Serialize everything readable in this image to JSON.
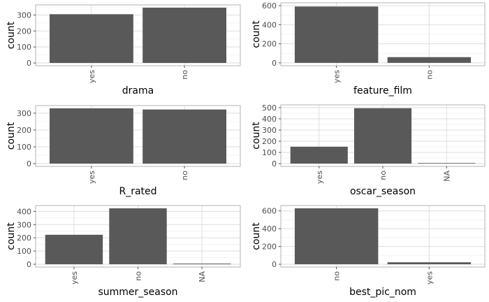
{
  "style": {
    "bar_color": "#595959",
    "panel_border": "#b3b3b3",
    "grid_major": "#dedede",
    "grid_minor": "#efefef",
    "tick_color": "#4d4d4d",
    "background": "#ffffff"
  },
  "chart_data": [
    {
      "type": "bar",
      "xlabel": "drama",
      "ylabel": "count",
      "categories": [
        "yes",
        "no"
      ],
      "values": [
        305,
        346
      ],
      "ylim": [
        0,
        346
      ],
      "yticks": [
        0,
        100,
        200,
        300
      ],
      "grid": true
    },
    {
      "type": "bar",
      "xlabel": "feature_film",
      "ylabel": "count",
      "categories": [
        "yes",
        "no"
      ],
      "values": [
        591,
        60
      ],
      "ylim": [
        0,
        600
      ],
      "yticks": [
        0,
        200,
        400,
        600
      ],
      "grid": true
    },
    {
      "type": "bar",
      "xlabel": "R_rated",
      "ylabel": "count",
      "categories": [
        "yes",
        "no"
      ],
      "values": [
        329,
        322
      ],
      "ylim": [
        0,
        329
      ],
      "yticks": [
        0,
        100,
        200,
        300
      ],
      "grid": true
    },
    {
      "type": "bar",
      "xlabel": "oscar_season",
      "ylabel": "count",
      "categories": [
        "yes",
        "no",
        "NA"
      ],
      "values": [
        151,
        495,
        5
      ],
      "ylim": [
        0,
        500
      ],
      "yticks": [
        0,
        100,
        200,
        300,
        400,
        500
      ],
      "grid": true
    },
    {
      "type": "bar",
      "xlabel": "summer_season",
      "ylabel": "count",
      "categories": [
        "yes",
        "no",
        "NA"
      ],
      "values": [
        223,
        423,
        5
      ],
      "ylim": [
        0,
        423
      ],
      "yticks": [
        0,
        100,
        200,
        300,
        400
      ],
      "grid": true
    },
    {
      "type": "bar",
      "xlabel": "best_pic_nom",
      "ylabel": "count",
      "categories": [
        "no",
        "yes"
      ],
      "values": [
        629,
        22
      ],
      "ylim": [
        0,
        629
      ],
      "yticks": [
        0,
        200,
        400,
        600
      ],
      "grid": true
    }
  ]
}
